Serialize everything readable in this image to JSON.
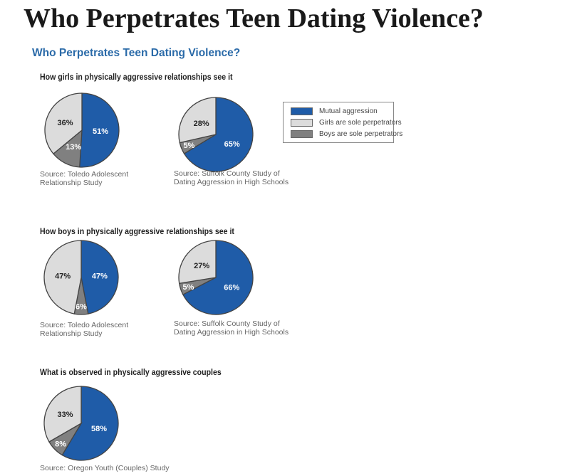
{
  "header": {
    "title": "Who Perpetrates Teen Dating Violence?"
  },
  "chart_data": {
    "type": "pie",
    "title": "Who Perpetrates Teen Dating Violence?",
    "legend": {
      "placement": "right",
      "entries": [
        "Mutual aggression",
        "Girls are sole perpetrators",
        "Boys are sole perpetrators"
      ]
    },
    "colors": {
      "Mutual aggression": "#1f5ca8",
      "Girls are sole perpetrators": "#dcdcdc",
      "Boys are sole perpetrators": "#808080"
    },
    "groups": [
      {
        "title": "How girls in physically aggressive relationships see it",
        "pies": [
          {
            "source": [
              "Source: Toledo Adolescent",
              "Relationship Study"
            ],
            "values": {
              "Mutual aggression": 51,
              "Boys are sole perpetrators": 13,
              "Girls are sole perpetrators": 36
            }
          },
          {
            "source": [
              "Source: Suffolk County Study of",
              "Dating Aggression in High Schools"
            ],
            "values": {
              "Mutual aggression": 65,
              "Boys are sole perpetrators": 5,
              "Girls are sole perpetrators": 28
            }
          }
        ]
      },
      {
        "title": "How boys in physically aggressive relationships see it",
        "pies": [
          {
            "source": [
              "Source: Toledo Adolescent",
              "Relationship Study"
            ],
            "values": {
              "Mutual aggression": 47,
              "Boys are sole perpetrators": 6,
              "Girls are sole perpetrators": 47
            }
          },
          {
            "source": [
              "Source: Suffolk County Study of",
              "Dating Aggression in High Schools"
            ],
            "values": {
              "Mutual aggression": 66,
              "Boys are sole perpetrators": 5,
              "Girls are sole perpetrators": 27
            }
          }
        ]
      },
      {
        "title": "What is observed in physically aggressive couples",
        "pies": [
          {
            "source": [
              "Source: Oregon Youth (Couples) Study"
            ],
            "values": {
              "Mutual aggression": 58,
              "Boys are sole perpetrators": 8,
              "Girls are sole perpetrators": 33
            }
          }
        ]
      }
    ]
  }
}
